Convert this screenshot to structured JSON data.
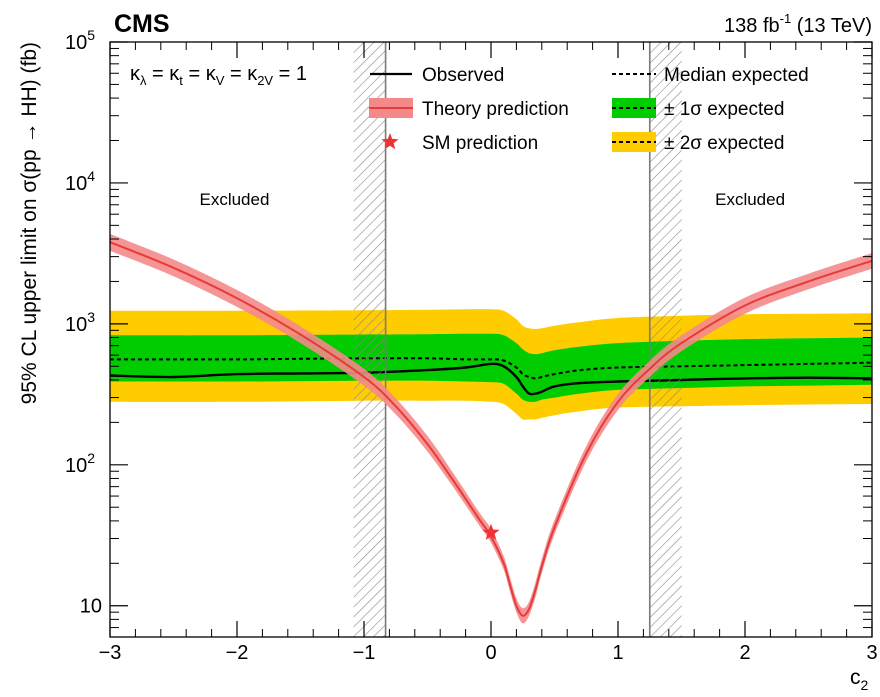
{
  "header": {
    "experiment": "CMS",
    "lumi_value": "138 fb",
    "lumi_exponent": "-1",
    "lumi_energy": " (13 TeV)"
  },
  "chart_data": {
    "type": "line",
    "xlabel": "c",
    "xlabel_sub": "2",
    "ylabel": "95% CL upper limit on σ(pp → HH) (fb)",
    "xlim": [
      -3,
      3
    ],
    "ylim": [
      6,
      100000
    ],
    "yscale": "log",
    "grid": false,
    "x_ticks": [
      -3,
      -2,
      -1,
      0,
      1,
      2,
      3
    ],
    "x_tick_labels": [
      "−3",
      "−2",
      "−1",
      "0",
      "1",
      "2",
      "3"
    ],
    "y_ticks": [
      10,
      100,
      1000,
      10000,
      100000
    ],
    "y_tick_labels": [
      {
        "base": "10",
        "exp": ""
      },
      {
        "base": "10",
        "exp": "2"
      },
      {
        "base": "10",
        "exp": "3"
      },
      {
        "base": "10",
        "exp": "4"
      },
      {
        "base": "10",
        "exp": "5"
      }
    ],
    "legend": {
      "placement": "top",
      "coupling_label": {
        "k": "κ",
        "subs": [
          "λ",
          "t",
          "V",
          "2V"
        ],
        "value": "1"
      },
      "entries": [
        {
          "key": "observed",
          "label": "Observed"
        },
        {
          "key": "median",
          "label": "Median expected"
        },
        {
          "key": "theory",
          "label": "Theory prediction"
        },
        {
          "key": "one_sigma",
          "label": "± 1σ expected"
        },
        {
          "key": "sm",
          "label": "SM prediction"
        },
        {
          "key": "two_sigma",
          "label": "± 2σ expected"
        }
      ]
    },
    "annotations": [
      {
        "text": "Excluded",
        "x": -2.02,
        "y": 7000
      },
      {
        "text": "Excluded",
        "x": 2.04,
        "y": 7000
      }
    ],
    "excluded_boundaries": [
      {
        "x": -0.83,
        "side": "left"
      },
      {
        "x": 1.25,
        "side": "right"
      }
    ],
    "colors": {
      "theory_line": "#e83a3a",
      "theory_band": "#f4898a",
      "one_sigma": "#00cc00",
      "two_sigma": "#ffcc00",
      "sm_marker": "#ee3333"
    },
    "series": [
      {
        "key": "observed",
        "x": [
          -3,
          -2.5,
          -2,
          -1.5,
          -1,
          -0.5,
          -0.2,
          0,
          0.1,
          0.2,
          0.25,
          0.3,
          0.35,
          0.4,
          0.5,
          0.7,
          1,
          1.5,
          2,
          2.5,
          3
        ],
        "y": [
          430,
          420,
          440,
          445,
          450,
          470,
          490,
          520,
          500,
          420,
          360,
          320,
          320,
          330,
          360,
          380,
          390,
          400,
          410,
          415,
          410
        ]
      },
      {
        "key": "median",
        "x": [
          -3,
          -2.5,
          -2,
          -1.5,
          -1,
          -0.5,
          -0.2,
          0,
          0.1,
          0.2,
          0.25,
          0.3,
          0.35,
          0.4,
          0.5,
          0.7,
          1,
          1.5,
          2,
          2.5,
          3
        ],
        "y": [
          560,
          560,
          560,
          565,
          570,
          570,
          560,
          560,
          550,
          490,
          440,
          420,
          410,
          420,
          440,
          470,
          490,
          500,
          510,
          520,
          530
        ]
      },
      {
        "key": "one_sigma",
        "x": [
          -3,
          -2,
          -1,
          -0.5,
          -0.2,
          0,
          0.1,
          0.2,
          0.25,
          0.3,
          0.35,
          0.4,
          0.5,
          0.7,
          1,
          1.5,
          2,
          2.5,
          3
        ],
        "low": [
          390,
          390,
          395,
          395,
          390,
          385,
          375,
          320,
          290,
          280,
          280,
          290,
          300,
          320,
          340,
          350,
          360,
          365,
          370
        ],
        "high": [
          830,
          830,
          840,
          845,
          850,
          850,
          830,
          730,
          660,
          620,
          610,
          620,
          650,
          690,
          730,
          760,
          780,
          790,
          800
        ]
      },
      {
        "key": "two_sigma",
        "x": [
          -3,
          -2,
          -1,
          -0.5,
          -0.2,
          0,
          0.1,
          0.2,
          0.25,
          0.3,
          0.35,
          0.4,
          0.5,
          0.7,
          1,
          1.5,
          2,
          2.5,
          3
        ],
        "low": [
          280,
          280,
          285,
          285,
          285,
          280,
          270,
          230,
          210,
          210,
          210,
          215,
          225,
          240,
          255,
          260,
          265,
          268,
          270
        ],
        "high": [
          1240,
          1240,
          1250,
          1260,
          1270,
          1270,
          1240,
          1080,
          970,
          930,
          920,
          930,
          970,
          1030,
          1100,
          1140,
          1170,
          1180,
          1190
        ]
      },
      {
        "key": "theory",
        "x": [
          -3,
          -2.5,
          -2,
          -1.5,
          -1,
          -0.75,
          -0.5,
          -0.3,
          -0.1,
          0,
          0.1,
          0.15,
          0.2,
          0.25,
          0.3,
          0.35,
          0.4,
          0.5,
          0.75,
          1,
          1.25,
          1.5,
          2,
          2.5,
          3
        ],
        "y": [
          3800,
          2500,
          1520,
          840,
          420,
          260,
          140,
          78,
          42,
          31,
          20,
          14,
          10,
          8.5,
          9.5,
          13,
          19,
          36,
          120,
          280,
          480,
          730,
          1350,
          2000,
          2800
        ],
        "low": [
          3300,
          2180,
          1320,
          730,
          365,
          228,
          124,
          70,
          38,
          28,
          18,
          12.5,
          9,
          7.5,
          8.5,
          11.5,
          17,
          32,
          106,
          245,
          420,
          640,
          1180,
          1760,
          2460
        ],
        "high": [
          4350,
          2860,
          1740,
          960,
          480,
          297,
          160,
          88,
          47,
          35,
          22.5,
          15.8,
          11.3,
          9.6,
          10.7,
          14.7,
          21.5,
          40.5,
          136,
          318,
          545,
          830,
          1535,
          2270,
          3180
        ]
      }
    ],
    "sm_point": {
      "x": 0,
      "y": 33
    }
  }
}
